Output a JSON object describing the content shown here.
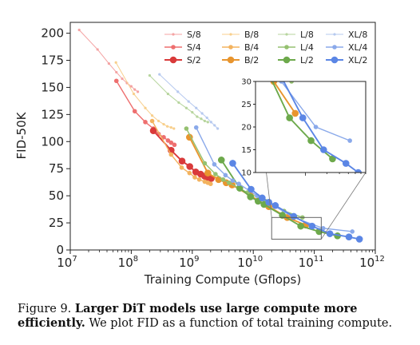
{
  "chart_data": {
    "type": "line",
    "xlabel": "Training Compute (Gflops)",
    "ylabel": "FID-50K",
    "xscale": "log",
    "xlim": [
      10000000,
      1000000000000
    ],
    "ylim": [
      0,
      210
    ],
    "x_tick_exponents": [
      "7",
      "8",
      "9",
      "10",
      "11",
      "12"
    ],
    "y_ticks": [
      "0",
      "25",
      "50",
      "75",
      "100",
      "125",
      "150",
      "175",
      "200"
    ],
    "legend_placement": "top-right",
    "grid": false,
    "series": [
      {
        "name": "S/8",
        "color": "#f4a3a3",
        "size": 1,
        "x": [
          14000000.0,
          28000000.0,
          43000000.0,
          57000000.0,
          71000000.0,
          85000000.0,
          100000000.0,
          114000000.0,
          128000000.0
        ],
        "y": [
          203,
          185,
          172,
          164,
          158,
          154,
          151,
          148,
          146
        ]
      },
      {
        "name": "S/4",
        "color": "#ee6f6f",
        "size": 2,
        "x": [
          57000000.0,
          114000000.0,
          170000000.0,
          230000000.0,
          280000000.0,
          340000000.0,
          400000000.0,
          450000000.0,
          510000000.0
        ],
        "y": [
          156,
          128,
          118,
          112,
          107,
          104,
          101,
          99,
          97
        ]
      },
      {
        "name": "S/2",
        "color": "#d93a3a",
        "size": 3,
        "x": [
          230000000.0,
          450000000.0,
          680000000.0,
          910000000.0,
          1140000000.0,
          1370000000.0,
          1600000000.0,
          1800000000.0,
          2050000000.0
        ],
        "y": [
          110,
          92,
          82,
          77,
          72,
          70,
          68,
          67,
          66
        ]
      },
      {
        "name": "B/8",
        "color": "#f8cf8c",
        "size": 1,
        "x": [
          56000000.0,
          110000000.0,
          170000000.0,
          220000000.0,
          280000000.0,
          340000000.0,
          390000000.0,
          450000000.0,
          500000000.0
        ],
        "y": [
          173,
          144,
          131,
          124,
          119,
          116,
          114,
          113,
          112
        ]
      },
      {
        "name": "B/4",
        "color": "#f3b35f",
        "size": 2,
        "x": [
          220000000.0,
          450000000.0,
          670000000.0,
          900000000.0,
          1100000000.0,
          1300000000.0,
          1600000000.0,
          1800000000.0,
          2000000000.0
        ],
        "y": [
          119,
          88,
          76,
          71,
          67,
          65,
          63,
          62,
          61
        ]
      },
      {
        "name": "B/2",
        "color": "#e8952e",
        "size": 3,
        "x": [
          900000000.0,
          1800000000.0,
          2700000000.0,
          3600000000.0,
          4500000000.0,
          9000000000.0,
          18000000000.0,
          36000000000.0,
          72000000000.0
        ],
        "y": [
          104,
          71,
          65,
          62,
          60,
          50,
          40,
          30,
          23
        ]
      },
      {
        "name": "L/8",
        "color": "#b7d59e",
        "size": 1,
        "x": [
          200000000.0,
          400000000.0,
          600000000.0,
          800000000.0,
          1000000000.0,
          1200000000.0,
          1400000000.0,
          1600000000.0,
          1800000000.0
        ],
        "y": [
          161,
          144,
          136,
          131,
          127,
          123,
          121,
          119,
          118
        ]
      },
      {
        "name": "L/4",
        "color": "#95c170",
        "size": 2,
        "x": [
          800000000.0,
          1600000000.0,
          2400000000.0,
          3200000000.0,
          4000000000.0,
          8000000000.0,
          16000000000.0,
          32000000000.0,
          64000000000.0
        ],
        "y": [
          112,
          80,
          70,
          65,
          62,
          53,
          45,
          36,
          30
        ]
      },
      {
        "name": "L/2",
        "color": "#6da94b",
        "size": 3,
        "x": [
          3000000000.0,
          6000000000.0,
          9000000000.0,
          12000000000.0,
          15000000000.0,
          30000000000.0,
          60000000000.0,
          120000000000.0,
          240000000000.0
        ],
        "y": [
          83,
          57,
          49,
          45,
          42,
          32,
          22,
          17,
          13
        ]
      },
      {
        "name": "XL/8",
        "color": "#b6c9ef",
        "size": 1,
        "x": [
          290000000.0,
          580000000.0,
          870000000.0,
          1160000000.0,
          1450000000.0,
          1740000000.0,
          2030000000.0,
          2320000000.0,
          2610000000.0
        ],
        "y": [
          162,
          146,
          137,
          131,
          126,
          122,
          118,
          115,
          112
        ]
      },
      {
        "name": "XL/4",
        "color": "#8aa9ea",
        "size": 2,
        "x": [
          1160000000.0,
          2300000000.0,
          3500000000.0,
          4600000000.0,
          5800000000.0,
          11600000000.0,
          23000000000.0,
          46000000000.0,
          140000000000.0,
          420000000000.0
        ],
        "y": [
          113,
          79,
          69,
          64,
          61,
          50,
          40,
          30,
          20,
          17
        ]
      },
      {
        "name": "XL/2",
        "color": "#5b86e5",
        "size": 3,
        "x": [
          4600000000.0,
          9200000000.0,
          14000000000.0,
          18000000000.0,
          23000000000.0,
          46000000000.0,
          92000000000.0,
          180000000000.0,
          370000000000.0,
          550000000000.0
        ],
        "y": [
          80,
          56,
          48,
          44,
          41,
          31,
          22,
          15,
          12,
          10
        ]
      }
    ],
    "inset": {
      "xlim": [
        20000000000,
        700000000000
      ],
      "ylim": [
        10,
        30
      ],
      "y_ticks": [
        "10",
        "15",
        "20",
        "25",
        "30"
      ],
      "zoom_box": {
        "xlim": [
          20000000000,
          130000000000
        ],
        "ylim": [
          10,
          30
        ]
      }
    }
  },
  "caption": {
    "label": "Figure 9.",
    "bold": "Larger DiT models use large compute more efficiently.",
    "rest": "We plot FID as a function of total training compute."
  }
}
